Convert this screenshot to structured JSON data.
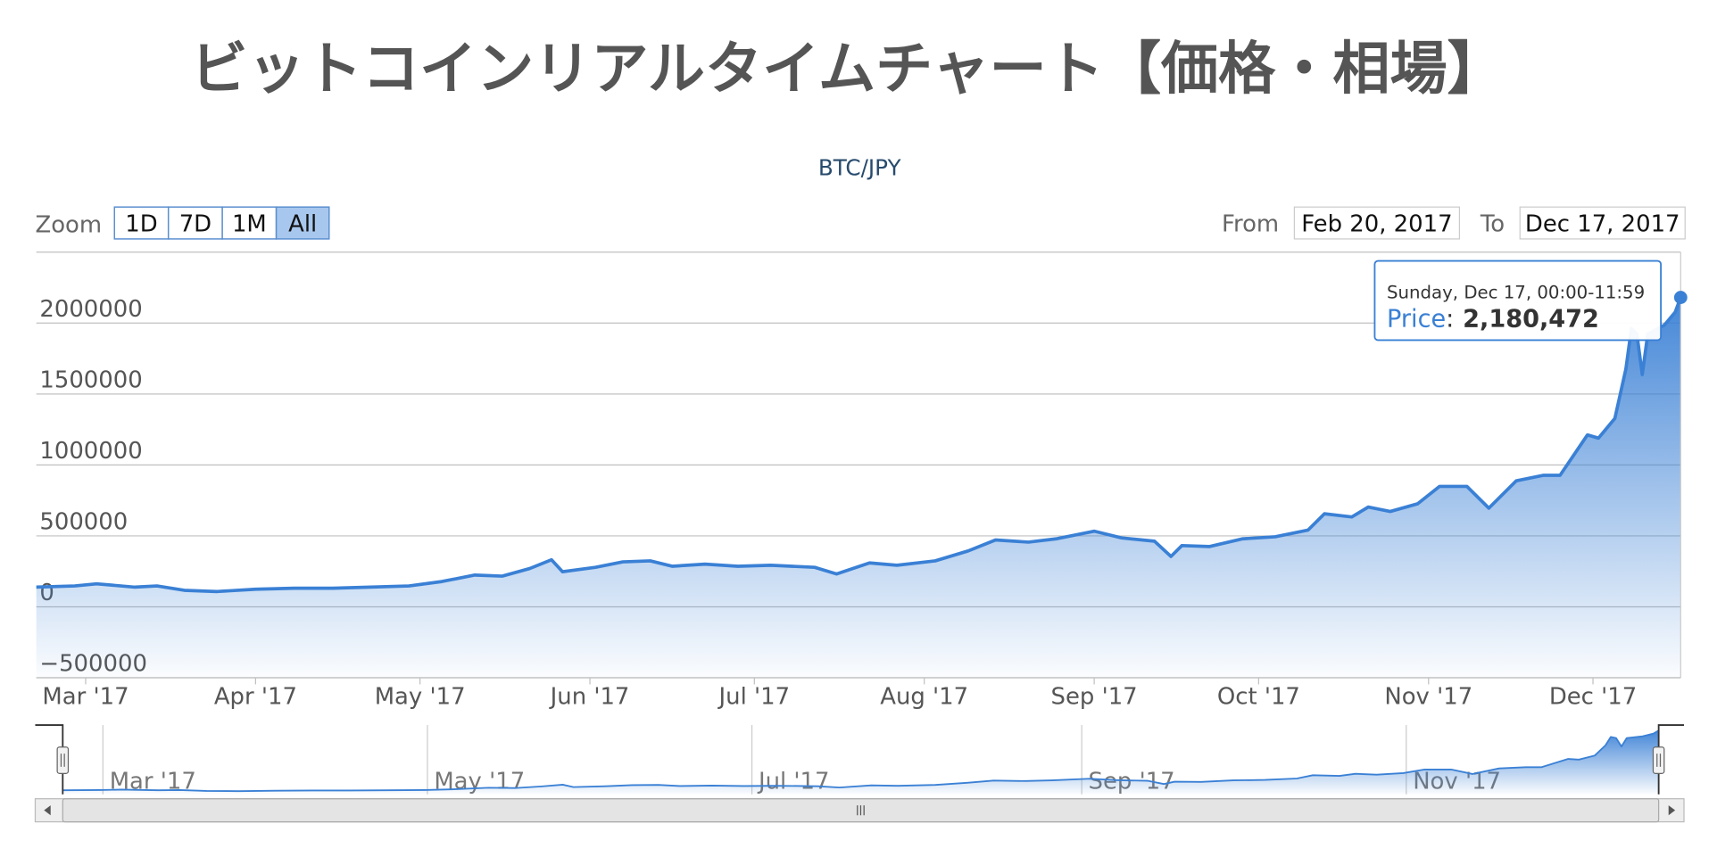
{
  "chart_data": {
    "type": "area",
    "title": "ビットコインリアルタイムチャート【価格・相場】",
    "subtitle": "BTC/JPY",
    "range_selector": {
      "label": "Zoom",
      "buttons": [
        "1D",
        "7D",
        "1M",
        "All"
      ],
      "selected": 3,
      "from_label": "From",
      "from": "Feb 20, 2017",
      "to_label": "To",
      "to": "Dec 17, 2017"
    },
    "x": [
      "2017-02-20",
      "2017-02-27",
      "2017-03-03",
      "2017-03-10",
      "2017-03-14",
      "2017-03-19",
      "2017-03-25",
      "2017-04-01",
      "2017-04-08",
      "2017-04-15",
      "2017-04-22",
      "2017-04-29",
      "2017-05-05",
      "2017-05-11",
      "2017-05-16",
      "2017-05-21",
      "2017-05-25",
      "2017-05-27",
      "2017-06-02",
      "2017-06-07",
      "2017-06-12",
      "2017-06-16",
      "2017-06-22",
      "2017-06-28",
      "2017-07-04",
      "2017-07-12",
      "2017-07-16",
      "2017-07-22",
      "2017-07-27",
      "2017-08-03",
      "2017-08-09",
      "2017-08-14",
      "2017-08-20",
      "2017-08-25",
      "2017-09-01",
      "2017-09-06",
      "2017-09-12",
      "2017-09-15",
      "2017-09-17",
      "2017-09-22",
      "2017-09-28",
      "2017-10-04",
      "2017-10-10",
      "2017-10-13",
      "2017-10-18",
      "2017-10-21",
      "2017-10-25",
      "2017-10-30",
      "2017-11-03",
      "2017-11-08",
      "2017-11-12",
      "2017-11-17",
      "2017-11-22",
      "2017-11-25",
      "2017-11-30",
      "2017-12-02",
      "2017-12-05",
      "2017-12-07",
      "2017-12-08",
      "2017-12-09",
      "2017-12-10",
      "2017-12-11",
      "2017-12-14",
      "2017-12-16",
      "2017-12-17"
    ],
    "series": [
      {
        "name": "Price",
        "color": "#3a80d5",
        "values": [
          139000,
          147000,
          162000,
          139000,
          147000,
          116000,
          108000,
          124000,
          131000,
          131000,
          139000,
          147000,
          178000,
          224000,
          216000,
          270000,
          332000,
          247000,
          278000,
          317000,
          324000,
          286000,
          301000,
          286000,
          293000,
          278000,
          232000,
          309000,
          293000,
          324000,
          394000,
          471000,
          456000,
          479000,
          533000,
          486000,
          463000,
          355000,
          432000,
          425000,
          479000,
          494000,
          541000,
          656000,
          633000,
          703000,
          672000,
          726000,
          849000,
          849000,
          695000,
          888000,
          927000,
          927000,
          1212000,
          1189000,
          1328000,
          1676000,
          1961000,
          1923000,
          1637000,
          1923000,
          1985000,
          2077000,
          2180472
        ],
        "value_labels": [
          null,
          null,
          null,
          null,
          null,
          null,
          null,
          null,
          null,
          null,
          null,
          null,
          null,
          null,
          null,
          null,
          null,
          null,
          null,
          null,
          null,
          null,
          null,
          null,
          null,
          null,
          null,
          null,
          null,
          null,
          null,
          null,
          null,
          null,
          null,
          null,
          null,
          null,
          null,
          null,
          null,
          null,
          null,
          null,
          null,
          null,
          null,
          null,
          null,
          null,
          null,
          null,
          null,
          null,
          null,
          null,
          null,
          null,
          null,
          null,
          null,
          null,
          null,
          null,
          "2,180,472"
        ]
      }
    ],
    "tooltip": {
      "header": "Sunday, Dec 17, 00:00-11:59",
      "separator": ":",
      "index": 64
    },
    "xlim": [
      "2017-02-20",
      "2017-12-17"
    ],
    "xticks": [
      {
        "value": "2017-03-01",
        "label": "Mar '17"
      },
      {
        "value": "2017-04-01",
        "label": "Apr '17"
      },
      {
        "value": "2017-05-01",
        "label": "May '17"
      },
      {
        "value": "2017-06-01",
        "label": "Jun '17"
      },
      {
        "value": "2017-07-01",
        "label": "Jul '17"
      },
      {
        "value": "2017-08-01",
        "label": "Aug '17"
      },
      {
        "value": "2017-09-01",
        "label": "Sep '17"
      },
      {
        "value": "2017-10-01",
        "label": "Oct '17"
      },
      {
        "value": "2017-11-01",
        "label": "Nov '17"
      },
      {
        "value": "2017-12-01",
        "label": "Dec '17"
      }
    ],
    "ylim": [
      -500000,
      2500000
    ],
    "yticks": [
      {
        "value": -500000,
        "label": "−500000"
      },
      0,
      500000,
      1000000,
      1500000,
      2000000
    ],
    "grid": true,
    "navigator_xticks": [
      {
        "value": "2017-03-01",
        "label": "Mar '17"
      },
      {
        "value": "2017-05-01",
        "label": "May '17"
      },
      {
        "value": "2017-07-01",
        "label": "Jul '17"
      },
      {
        "value": "2017-09-01",
        "label": "Sep '17"
      },
      {
        "value": "2017-11-01",
        "label": "Nov '17"
      }
    ]
  }
}
